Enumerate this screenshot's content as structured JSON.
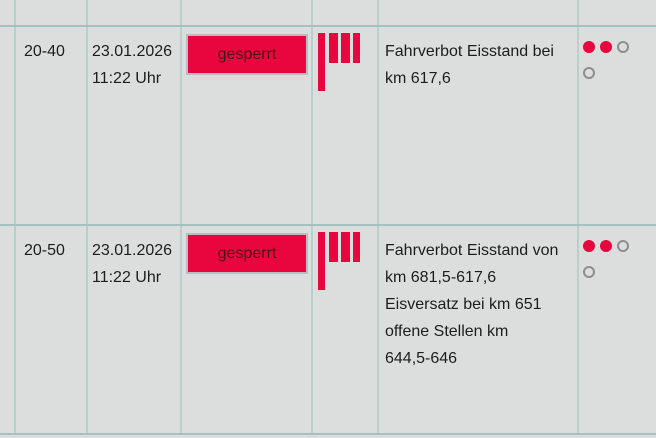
{
  "colors": {
    "accent_red": "#e9053e",
    "background_gray": "#dcdddd",
    "grid_horizontal": "#a4c1bd",
    "grid_vertical": "#b9cfcb",
    "button_border_gray": "#b4c0c0",
    "empty_dot_gray": "#8e8e8e"
  },
  "table": {
    "rows": [
      {
        "id": "20-40",
        "datetime": "23.01.2026\n11:22 Uhr",
        "status_label": "gesperrt",
        "icon": "ice-flag-icon",
        "description": "Fahrverbot Eisstand bei\nkm 617,6",
        "indicators": [
          [
            "filled",
            "filled",
            "empty"
          ],
          [
            "empty"
          ]
        ]
      },
      {
        "id": "20-50",
        "datetime": "23.01.2026\n11:22 Uhr",
        "status_label": "gesperrt",
        "icon": "ice-flag-icon",
        "description": "Fahrverbot Eisstand von\nkm 681,5-617,6\nEisversatz bei km 651\noffene Stellen km\n644,5-646",
        "indicators": [
          [
            "filled",
            "filled",
            "empty"
          ],
          [
            "empty"
          ]
        ]
      }
    ]
  }
}
